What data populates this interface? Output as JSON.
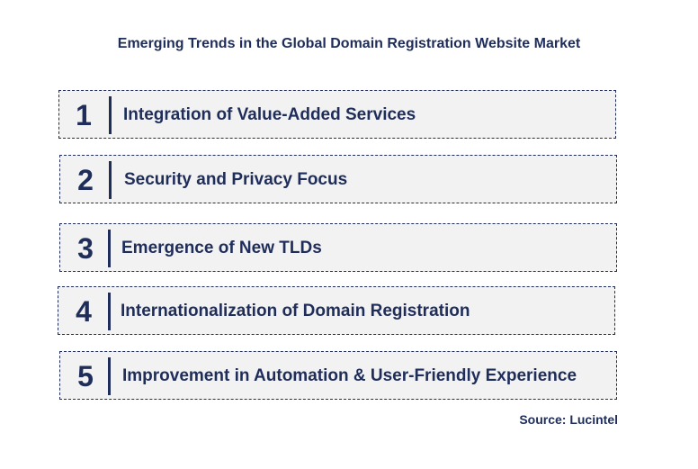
{
  "title": "Emerging Trends in the Global Domain Registration Website Market",
  "trends": [
    {
      "number": "1",
      "label": "Integration of Value-Added Services"
    },
    {
      "number": "2",
      "label": "Security and Privacy Focus"
    },
    {
      "number": "3",
      "label": "Emergence of New TLDs"
    },
    {
      "number": "4",
      "label": "Internationalization of Domain Registration"
    },
    {
      "number": "5",
      "label": "Improvement in Automation & User-Friendly Experience"
    }
  ],
  "source": "Source: Lucintel",
  "colors": {
    "text": "#1f2d5a",
    "box_bg": "#f2f2f2",
    "border": "#1f2d5a"
  }
}
